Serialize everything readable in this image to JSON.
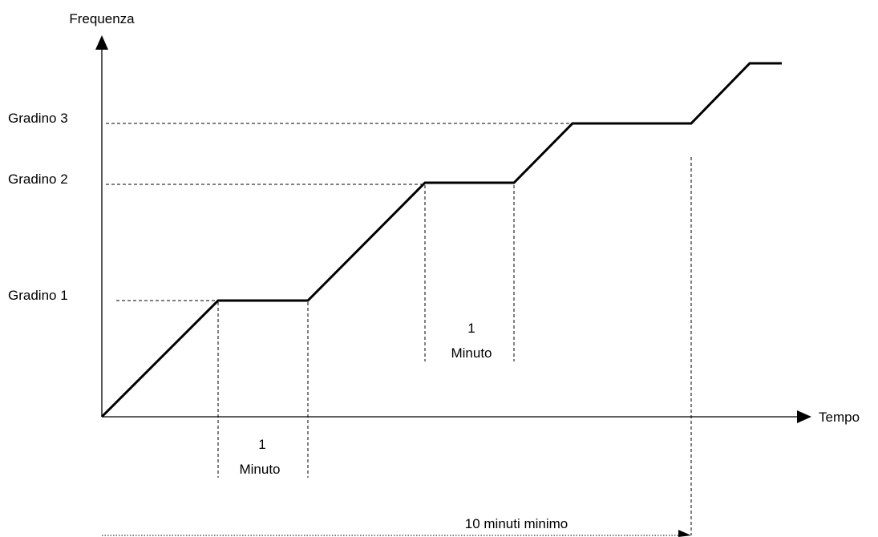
{
  "axes": {
    "y_label": "Frequenza",
    "x_label": "Tempo"
  },
  "levels": [
    {
      "label": "Gradino 1"
    },
    {
      "label": "Gradino 2"
    },
    {
      "label": "Gradino 3"
    }
  ],
  "intervals": {
    "first": {
      "number": "1",
      "unit": "Minuto"
    },
    "second": {
      "number": "1",
      "unit": "Minuto"
    },
    "total": "10 minuti minimo"
  }
}
